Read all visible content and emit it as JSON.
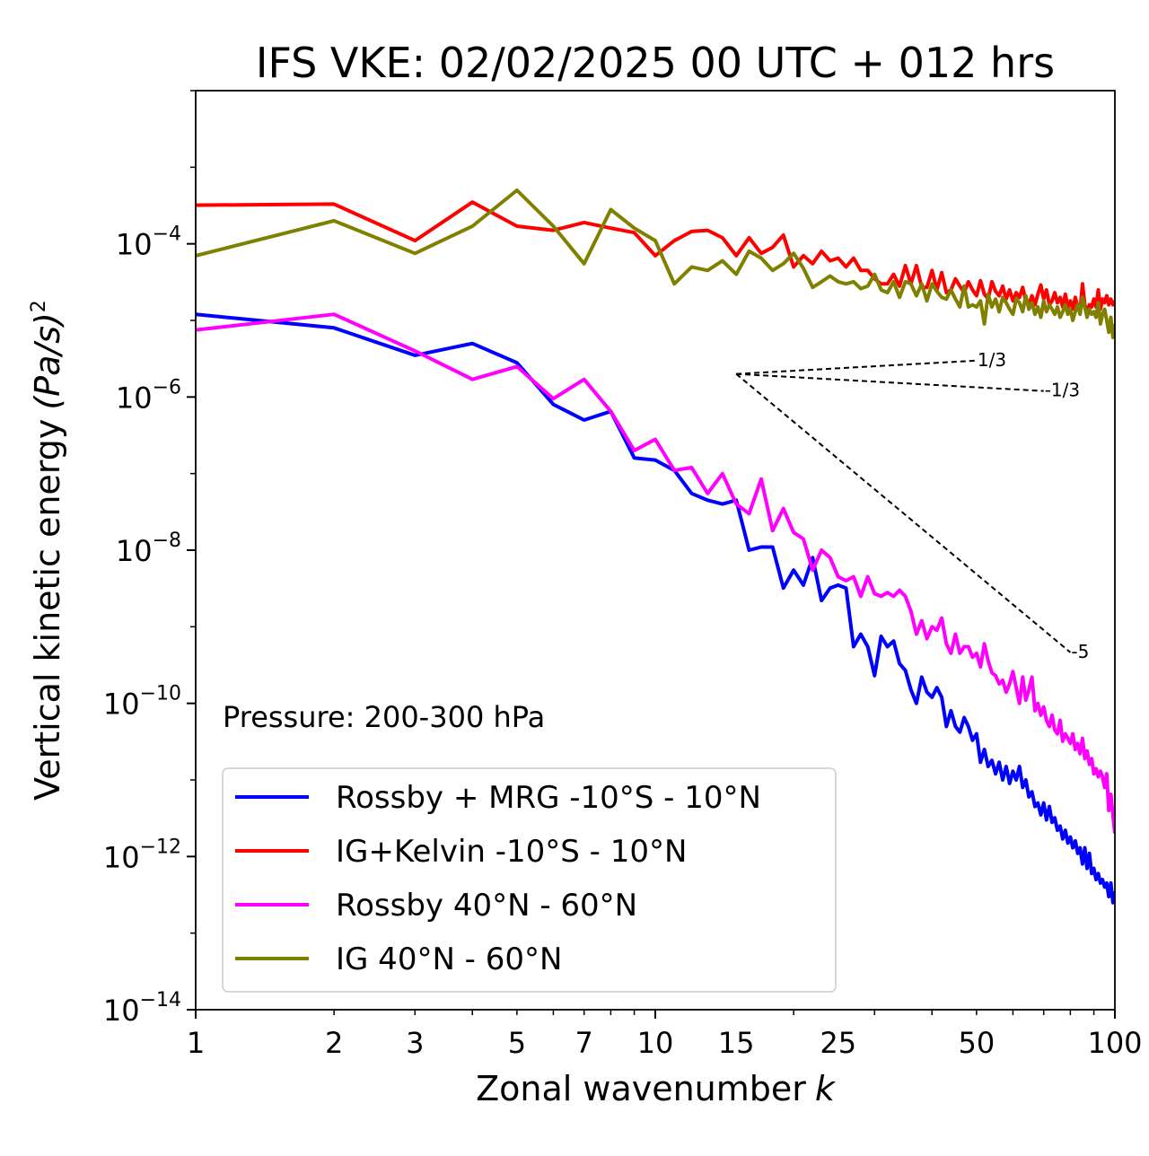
{
  "chart_data": {
    "type": "line",
    "title": "IFS VKE: 02/02/2025 00 UTC + 012 hrs",
    "xlabel": "Zonal wavenumber",
    "xlabel_var": "k",
    "ylabel": "Vertical kinetic energy",
    "ylabel_units": "(Pa/s)",
    "ylabel_power": "2",
    "xscale": "log",
    "yscale": "log",
    "xlim": [
      1,
      100
    ],
    "ylim": [
      1e-14,
      0.01
    ],
    "x_ticks": [
      {
        "value": 1,
        "label": "1"
      },
      {
        "value": 2,
        "label": "2"
      },
      {
        "value": 3,
        "label": "3"
      },
      {
        "value": 5,
        "label": "5"
      },
      {
        "value": 7,
        "label": "7"
      },
      {
        "value": 10,
        "label": "10"
      },
      {
        "value": 15,
        "label": "15"
      },
      {
        "value": 25,
        "label": "25"
      },
      {
        "value": 50,
        "label": "50"
      },
      {
        "value": 100,
        "label": "100"
      }
    ],
    "y_ticks": [
      {
        "value": 0.0001,
        "base": "10",
        "exp": "−4"
      },
      {
        "value": 1e-06,
        "base": "10",
        "exp": "−6"
      },
      {
        "value": 1e-08,
        "base": "10",
        "exp": "−8"
      },
      {
        "value": 1e-10,
        "base": "10",
        "exp": "−10"
      },
      {
        "value": 1e-12,
        "base": "10",
        "exp": "−12"
      },
      {
        "value": 1e-14,
        "base": "10",
        "exp": "−14"
      }
    ],
    "annotation": "Pressure: 200-300 hPa",
    "legend_position": "lower-left",
    "grid": false,
    "series": [
      {
        "name": "Rossby + MRG -10°S - 10°N",
        "color": "#0000ff",
        "x": [
          1,
          2,
          3,
          4,
          5,
          6,
          7,
          8,
          9,
          10,
          11,
          12,
          13,
          14,
          15,
          16,
          17,
          18,
          19,
          20,
          21,
          22,
          23,
          24,
          25,
          26,
          27,
          28,
          29,
          30,
          31,
          32,
          33,
          34,
          35,
          36,
          37,
          38,
          39,
          40,
          41,
          42,
          43,
          44,
          45,
          46,
          47,
          48,
          49,
          50,
          51,
          52,
          53,
          54,
          55,
          56,
          57,
          58,
          59,
          60,
          61,
          62,
          63,
          64,
          65,
          66,
          67,
          68,
          69,
          70,
          71,
          72,
          73,
          74,
          75,
          76,
          77,
          78,
          79,
          80,
          81,
          82,
          83,
          84,
          85,
          86,
          87,
          88,
          89,
          90,
          91,
          92,
          93,
          94,
          95,
          96,
          97,
          98,
          99,
          100
        ],
        "y": [
          1.2e-05,
          8e-06,
          3.5e-06,
          5e-06,
          2.8e-06,
          8e-07,
          5e-07,
          6.5e-07,
          1.6e-07,
          1.5e-07,
          1.1e-07,
          5.5e-08,
          4.5e-08,
          4e-08,
          4.5e-08,
          1e-08,
          1.1e-08,
          1.1e-08,
          3.2e-09,
          5.5e-09,
          3.5e-09,
          8e-09,
          2.2e-09,
          3.2e-09,
          3.5e-09,
          3.2e-09,
          5.5e-10,
          8e-10,
          5.5e-10,
          2.3e-10,
          7.5e-10,
          5.5e-10,
          6.5e-10,
          3.3e-10,
          2.7e-10,
          1.5e-10,
          1e-10,
          2.2e-10,
          1.4e-10,
          1.2e-10,
          1.6e-10,
          1.2e-10,
          5e-11,
          8e-11,
          5e-11,
          4.2e-11,
          6.5e-11,
          5e-11,
          3.3e-11,
          4e-11,
          1.7e-11,
          2.5e-11,
          1.5e-11,
          1.8e-11,
          1.2e-11,
          1.7e-11,
          1e-11,
          1.5e-11,
          9e-12,
          1.3e-11,
          1e-11,
          1.5e-11,
          8e-12,
          1e-11,
          6e-12,
          7e-12,
          4.5e-12,
          5e-12,
          3.5e-12,
          5e-12,
          3e-12,
          4.5e-12,
          2.8e-12,
          3.2e-12,
          2.2e-12,
          2.5e-12,
          1.7e-12,
          2.2e-12,
          1.5e-12,
          1.8e-12,
          1.3e-12,
          1.6e-12,
          1.1e-12,
          1.3e-12,
          8e-13,
          1.3e-12,
          7e-13,
          1.1e-12,
          6e-13,
          7e-13,
          5e-13,
          6e-13,
          4.5e-13,
          5e-13,
          4e-13,
          4.5e-13,
          3e-13,
          4.5e-13,
          2.5e-13,
          3.5e-13
        ]
      },
      {
        "name": "IG+Kelvin -10°S - 10°N",
        "color": "#ff0000",
        "x": [
          1,
          2,
          3,
          4,
          5,
          6,
          7,
          8,
          9,
          10,
          11,
          12,
          13,
          14,
          15,
          16,
          17,
          18,
          19,
          20,
          21,
          22,
          23,
          24,
          25,
          26,
          27,
          28,
          29,
          30,
          31,
          32,
          33,
          34,
          35,
          36,
          37,
          38,
          39,
          40,
          41,
          42,
          43,
          44,
          45,
          46,
          47,
          48,
          49,
          50,
          51,
          52,
          53,
          54,
          55,
          56,
          57,
          58,
          59,
          60,
          61,
          62,
          63,
          64,
          65,
          66,
          67,
          68,
          69,
          70,
          71,
          72,
          73,
          74,
          75,
          76,
          77,
          78,
          79,
          80,
          81,
          82,
          83,
          84,
          85,
          86,
          87,
          88,
          89,
          90,
          91,
          92,
          93,
          94,
          95,
          96,
          97,
          98,
          99,
          100
        ],
        "y": [
          0.00032,
          0.00033,
          0.00011,
          0.00035,
          0.00017,
          0.00015,
          0.00019,
          0.00016,
          0.00014,
          7e-05,
          0.00011,
          0.000145,
          0.00015,
          0.00012,
          7e-05,
          0.00012,
          7.5e-05,
          9e-05,
          0.00013,
          5e-05,
          7e-05,
          5.5e-05,
          8e-05,
          6e-05,
          6.5e-05,
          5e-05,
          6.5e-05,
          4.5e-05,
          4.5e-05,
          3.5e-05,
          3e-05,
          3e-05,
          4e-05,
          2.8e-05,
          5.2e-05,
          3e-05,
          5.2e-05,
          2.7e-05,
          2.7e-05,
          4.5e-05,
          2.5e-05,
          4.2e-05,
          2.3e-05,
          2.5e-05,
          3.5e-05,
          2.8e-05,
          2.3e-05,
          3.2e-05,
          2.5e-05,
          2.1e-05,
          3.3e-05,
          2.2e-05,
          1.9e-05,
          3.2e-05,
          2.4e-05,
          2.1e-05,
          2.8e-05,
          1.9e-05,
          2.5e-05,
          1.8e-05,
          2.3e-05,
          2e-05,
          2.7e-05,
          1.8e-05,
          1.6e-05,
          2.1e-05,
          1.6e-05,
          2.2e-05,
          2.9e-05,
          1.9e-05,
          2.5e-05,
          1.6e-05,
          1.8e-05,
          2.3e-05,
          1.7e-05,
          2e-05,
          1.5e-05,
          2.2e-05,
          1.5e-05,
          1.8e-05,
          1.4e-05,
          2e-05,
          1.5e-05,
          1.3e-05,
          3e-05,
          1.6e-05,
          1.3e-05,
          1.6e-05,
          1.5e-05,
          1.9e-05,
          1.5e-05,
          2.5e-05,
          1.4e-05,
          1.9e-05,
          1.7e-05,
          2.1e-05,
          1.6e-05,
          1.9e-05,
          1.6e-05,
          1.8e-05
        ]
      },
      {
        "name": "Rossby 40°N - 60°N",
        "color": "#ff00ff",
        "x": [
          1,
          2,
          3,
          4,
          5,
          6,
          7,
          8,
          9,
          10,
          11,
          12,
          13,
          14,
          15,
          16,
          17,
          18,
          19,
          20,
          21,
          22,
          23,
          24,
          25,
          26,
          27,
          28,
          29,
          30,
          31,
          32,
          33,
          34,
          35,
          36,
          37,
          38,
          39,
          40,
          41,
          42,
          43,
          44,
          45,
          46,
          47,
          48,
          49,
          50,
          51,
          52,
          53,
          54,
          55,
          56,
          57,
          58,
          59,
          60,
          61,
          62,
          63,
          64,
          65,
          66,
          67,
          68,
          69,
          70,
          71,
          72,
          73,
          74,
          75,
          76,
          77,
          78,
          79,
          80,
          81,
          82,
          83,
          84,
          85,
          86,
          87,
          88,
          89,
          90,
          91,
          92,
          93,
          94,
          95,
          96,
          97,
          98,
          99,
          100
        ],
        "y": [
          7.5e-06,
          1.2e-05,
          4e-06,
          1.7e-06,
          2.5e-06,
          9.5e-07,
          1.7e-06,
          6.5e-07,
          2e-07,
          2.8e-07,
          1.1e-07,
          1.2e-07,
          5.5e-08,
          1e-07,
          4e-08,
          3e-08,
          8.5e-08,
          1.8e-08,
          3.5e-08,
          1.7e-08,
          1.4e-08,
          5.5e-09,
          1e-08,
          8e-09,
          4.5e-09,
          4e-09,
          4.5e-09,
          2.5e-09,
          4.5e-09,
          2.7e-09,
          2.5e-09,
          2.8e-09,
          2.5e-09,
          3e-09,
          2.5e-09,
          1.6e-09,
          8e-10,
          1.2e-09,
          7e-10,
          1e-09,
          9e-10,
          1.3e-09,
          6e-10,
          4.5e-10,
          8e-10,
          4.5e-10,
          5.5e-10,
          5.5e-10,
          4e-10,
          4.5e-10,
          3e-10,
          6e-10,
          3.6e-10,
          2.5e-10,
          2.3e-10,
          1.8e-10,
          2e-10,
          1.4e-10,
          1.8e-10,
          2.6e-10,
          1.6e-10,
          1e-10,
          2.2e-10,
          1.1e-10,
          1.5e-10,
          2.2e-10,
          8e-11,
          1e-10,
          7e-11,
          9e-11,
          6e-11,
          5e-11,
          7e-11,
          4.5e-11,
          4e-11,
          6e-11,
          3.2e-11,
          4e-11,
          3.5e-11,
          3e-11,
          4e-11,
          2.5e-11,
          3e-11,
          2.2e-11,
          3.5e-11,
          1.9e-11,
          2.4e-11,
          1.6e-11,
          1.9e-11,
          1.2e-11,
          1.4e-11,
          1.1e-11,
          1.3e-11,
          1.1e-11,
          8e-12,
          1.2e-11,
          4e-12,
          6.5e-12,
          3.5e-12,
          2e-12
        ]
      },
      {
        "name": "IG 40°N - 60°N",
        "color": "#808000",
        "x": [
          1,
          2,
          3,
          4,
          5,
          6,
          7,
          8,
          9,
          10,
          11,
          12,
          13,
          14,
          15,
          16,
          17,
          18,
          19,
          20,
          21,
          22,
          23,
          24,
          25,
          26,
          27,
          28,
          29,
          30,
          31,
          32,
          33,
          34,
          35,
          36,
          37,
          38,
          39,
          40,
          41,
          42,
          43,
          44,
          45,
          46,
          47,
          48,
          49,
          50,
          51,
          52,
          53,
          54,
          55,
          56,
          57,
          58,
          59,
          60,
          61,
          62,
          63,
          64,
          65,
          66,
          67,
          68,
          69,
          70,
          71,
          72,
          73,
          74,
          75,
          76,
          77,
          78,
          79,
          80,
          81,
          82,
          83,
          84,
          85,
          86,
          87,
          88,
          89,
          90,
          91,
          92,
          93,
          94,
          95,
          96,
          97,
          98,
          99,
          100
        ],
        "y": [
          7e-05,
          0.0002,
          7.5e-05,
          0.00017,
          0.0005,
          0.00017,
          5.5e-05,
          0.00028,
          0.00016,
          0.00011,
          3e-05,
          5e-05,
          4.5e-05,
          6e-05,
          4e-05,
          8e-05,
          6.5e-05,
          4.5e-05,
          5.5e-05,
          7.5e-05,
          4.8e-05,
          2.7e-05,
          3.2e-05,
          3.8e-05,
          3.2e-05,
          3e-05,
          3.2e-05,
          2.6e-05,
          2.8e-05,
          4e-05,
          2.5e-05,
          2.3e-05,
          3.2e-05,
          2e-05,
          3.2e-05,
          3e-05,
          2.1e-05,
          3e-05,
          1.8e-05,
          3e-05,
          2.4e-05,
          2e-05,
          1.9e-05,
          2.5e-05,
          1.9e-05,
          1.5e-05,
          2.8e-05,
          1.5e-05,
          1.6e-05,
          1.5e-05,
          1.8e-05,
          9e-06,
          2.2e-05,
          1.5e-05,
          1.9e-05,
          1.3e-05,
          2e-05,
          1.7e-05,
          1.4e-05,
          1.2e-05,
          1.9e-05,
          1.7e-05,
          1.3e-05,
          2.1e-05,
          1.4e-05,
          1.7e-05,
          1.2e-05,
          1.5e-05,
          1.1e-05,
          1.8e-05,
          1.3e-05,
          1.6e-05,
          1.4e-05,
          1.2e-05,
          1.5e-05,
          1.1e-05,
          1.3e-05,
          1.6e-05,
          1.2e-05,
          1.4e-05,
          1e-05,
          1.3e-05,
          1.6e-05,
          1.2e-05,
          2e-05,
          1.5e-05,
          1.1e-05,
          1.4e-05,
          1.2e-05,
          1.3e-05,
          1.1e-05,
          1.7e-05,
          9e-06,
          1.2e-05,
          1.4e-05,
          1e-05,
          7e-06,
          1.1e-05,
          6e-06,
          9e-06
        ]
      }
    ],
    "reference_slopes": [
      {
        "label": "1/3",
        "x0": 15,
        "y0": 2e-06,
        "x1": 50
      },
      {
        "label": "-1/3",
        "x0": 15,
        "y0": 2e-06,
        "x1": 70
      },
      {
        "label": "-5",
        "x0": 15,
        "y0": 2e-06,
        "x1": 80
      }
    ]
  }
}
